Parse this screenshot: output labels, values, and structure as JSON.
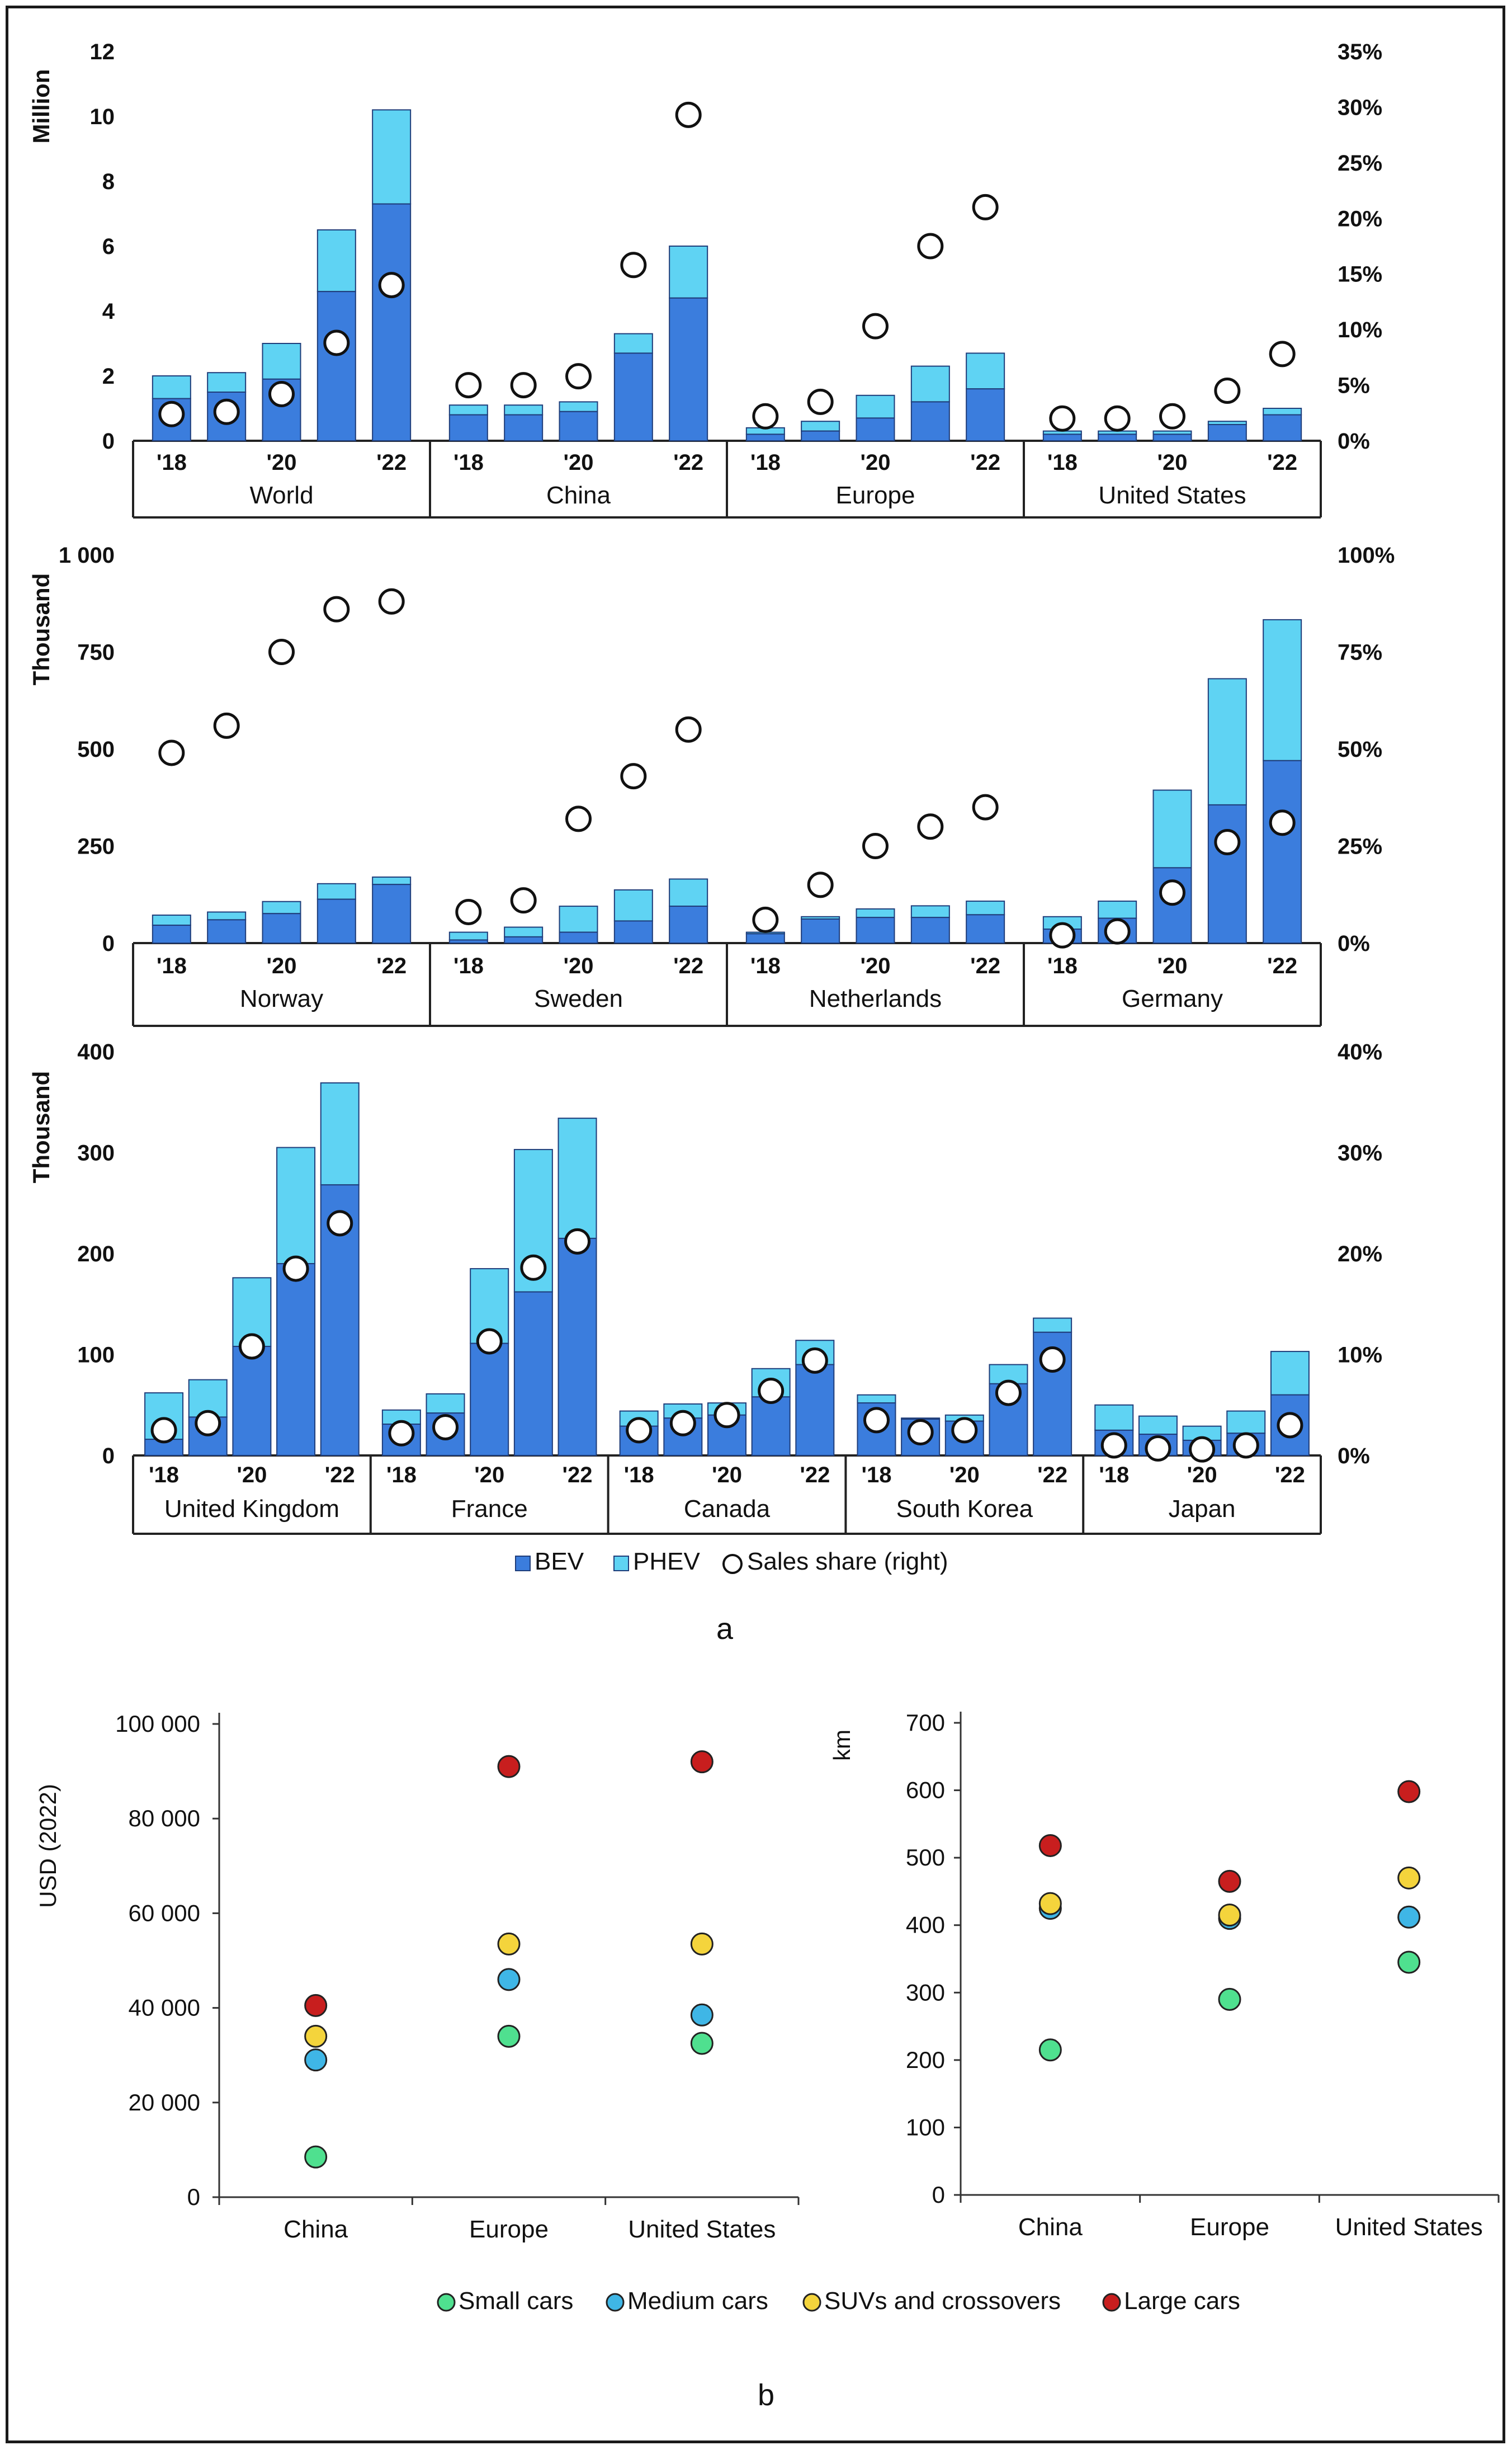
{
  "colors": {
    "bev": "#3b7ddd",
    "phev": "#5fd3f3",
    "small": "#4fe08f",
    "medium": "#3fb6e6",
    "suv": "#f4d43c",
    "large": "#c81e1e",
    "axis": "#222222",
    "marker_fill": "#ffffff"
  },
  "panel_a": {
    "caption": "a",
    "legend": {
      "bev": "BEV",
      "phev": "PHEV",
      "share": "Sales share (right)"
    },
    "year_ticks": [
      "'18",
      "'20",
      "'22"
    ],
    "charts": [
      {
        "id": "row1",
        "y_unit_label": "Million",
        "ylim": [
          0,
          12
        ],
        "y_ticks": [
          "0",
          "2",
          "4",
          "6",
          "8",
          "10",
          "12"
        ],
        "y_tick_values": [
          0,
          2,
          4,
          6,
          8,
          10,
          12
        ],
        "share_max": 35,
        "share_ticks": [
          "0%",
          "5%",
          "10%",
          "15%",
          "20%",
          "25%",
          "30%",
          "35%"
        ],
        "share_tick_values": [
          0,
          5,
          10,
          15,
          20,
          25,
          30,
          35
        ],
        "groups": [
          {
            "name": "World",
            "bev": [
              1.3,
              1.5,
              1.9,
              4.6,
              7.3
            ],
            "total": [
              2.0,
              2.1,
              3.0,
              6.5,
              10.2
            ],
            "share": [
              2.4,
              2.6,
              4.2,
              8.8,
              14.0
            ]
          },
          {
            "name": "China",
            "bev": [
              0.8,
              0.8,
              0.9,
              2.7,
              4.4
            ],
            "total": [
              1.1,
              1.1,
              1.2,
              3.3,
              6.0
            ],
            "share": [
              5.0,
              5.0,
              5.8,
              15.8,
              29.3
            ]
          },
          {
            "name": "Europe",
            "bev": [
              0.2,
              0.3,
              0.7,
              1.2,
              1.6
            ],
            "total": [
              0.4,
              0.6,
              1.4,
              2.3,
              2.7
            ],
            "share": [
              2.2,
              3.5,
              10.3,
              17.5,
              21.0
            ]
          },
          {
            "name": "United States",
            "bev": [
              0.2,
              0.2,
              0.2,
              0.5,
              0.8
            ],
            "total": [
              0.3,
              0.3,
              0.3,
              0.6,
              1.0
            ],
            "share": [
              2.0,
              2.0,
              2.2,
              4.5,
              7.8
            ]
          }
        ]
      },
      {
        "id": "row2",
        "y_unit_label": "Thousand",
        "ylim": [
          0,
          1000
        ],
        "y_ticks": [
          "0",
          "250",
          "500",
          "750",
          "1 000"
        ],
        "y_tick_values": [
          0,
          250,
          500,
          750,
          1000
        ],
        "share_max": 100,
        "share_ticks": [
          "0%",
          "25%",
          "50%",
          "75%",
          "100%"
        ],
        "share_tick_values": [
          0,
          25,
          50,
          75,
          100
        ],
        "groups": [
          {
            "name": "Norway",
            "bev": [
              46,
              60,
              76,
              113,
              151
            ],
            "total": [
              72,
              80,
              107,
              153,
              170
            ],
            "share": [
              49,
              56,
              75,
              86,
              88
            ]
          },
          {
            "name": "Sweden",
            "bev": [
              8,
              16,
              28,
              57,
              95
            ],
            "total": [
              28,
              41,
              95,
              137,
              165
            ],
            "share": [
              8,
              11,
              32,
              43,
              55
            ]
          },
          {
            "name": "Netherlands",
            "bev": [
              24,
              62,
              66,
              66,
              73
            ],
            "total": [
              28,
              68,
              88,
              96,
              108
            ],
            "share": [
              6,
              15,
              25,
              30,
              35
            ]
          },
          {
            "name": "Germany",
            "bev": [
              36,
              64,
              194,
              356,
              470
            ],
            "total": [
              68,
              108,
              394,
              681,
              833
            ],
            "share": [
              2,
              3,
              13,
              26,
              31
            ]
          }
        ]
      },
      {
        "id": "row3",
        "y_unit_label": "Thousand",
        "ylim": [
          0,
          400
        ],
        "y_ticks": [
          "0",
          "100",
          "200",
          "300",
          "400"
        ],
        "y_tick_values": [
          0,
          100,
          200,
          300,
          400
        ],
        "share_max": 40,
        "share_ticks": [
          "0%",
          "10%",
          "20%",
          "30%",
          "40%"
        ],
        "share_tick_values": [
          0,
          10,
          20,
          30,
          40
        ],
        "groups": [
          {
            "name": "United Kingdom",
            "bev": [
              16,
              38,
              108,
              190,
              268
            ],
            "total": [
              62,
              75,
              176,
              305,
              369
            ],
            "share": [
              2.5,
              3.2,
              10.8,
              18.5,
              23.0
            ]
          },
          {
            "name": "France",
            "bev": [
              31,
              42,
              111,
              162,
              215
            ],
            "total": [
              45,
              61,
              185,
              303,
              334
            ],
            "share": [
              2.2,
              2.8,
              11.3,
              18.6,
              21.2
            ]
          },
          {
            "name": "Canada",
            "bev": [
              29,
              37,
              40,
              58,
              90
            ],
            "total": [
              44,
              51,
              52,
              86,
              114
            ],
            "share": [
              2.5,
              3.2,
              4.0,
              6.4,
              9.4
            ]
          },
          {
            "name": "South Korea",
            "bev": [
              52,
              36,
              34,
              71,
              122
            ],
            "total": [
              60,
              37,
              40,
              90,
              136
            ],
            "share": [
              3.5,
              2.3,
              2.5,
              6.2,
              9.5
            ]
          },
          {
            "name": "Japan",
            "bev": [
              25,
              21,
              15,
              22,
              60
            ],
            "total": [
              50,
              39,
              29,
              44,
              103
            ],
            "share": [
              1.0,
              0.7,
              0.6,
              1.0,
              3.0
            ]
          }
        ]
      }
    ]
  },
  "panel_b": {
    "caption": "b",
    "categories": [
      "China",
      "Europe",
      "United States"
    ],
    "legend": [
      "Small cars",
      "Medium cars",
      "SUVs and crossovers",
      "Large cars"
    ],
    "price_chart": {
      "ylabel": "USD (2022)",
      "ylim": [
        0,
        100000
      ],
      "y_ticks": [
        "0",
        "20 000",
        "40 000",
        "60 000",
        "80 000",
        "100 000"
      ],
      "y_tick_values": [
        0,
        20000,
        40000,
        60000,
        80000,
        100000
      ],
      "series": [
        {
          "name": "Small cars",
          "values": [
            8500,
            34000,
            32500
          ]
        },
        {
          "name": "Medium cars",
          "values": [
            29000,
            46000,
            38500
          ]
        },
        {
          "name": "SUVs and crossovers",
          "values": [
            34000,
            53500,
            53500
          ]
        },
        {
          "name": "Large cars",
          "values": [
            40500,
            91000,
            92000
          ]
        }
      ]
    },
    "range_chart": {
      "ylabel": "km",
      "ylim": [
        0,
        700
      ],
      "y_ticks": [
        "0",
        "100",
        "200",
        "300",
        "400",
        "500",
        "600",
        "700"
      ],
      "y_tick_values": [
        0,
        100,
        200,
        300,
        400,
        500,
        600,
        700
      ],
      "series": [
        {
          "name": "Small cars",
          "values": [
            215,
            290,
            345
          ]
        },
        {
          "name": "Medium cars",
          "values": [
            425,
            410,
            412
          ]
        },
        {
          "name": "SUVs and crossovers",
          "values": [
            432,
            415,
            470
          ]
        },
        {
          "name": "Large cars",
          "values": [
            518,
            465,
            598
          ]
        }
      ]
    }
  },
  "chart_data": [
    {
      "type": "bar",
      "title": "",
      "ylabel": "Million",
      "y2label": "Sales share (right)",
      "ylim": [
        0,
        12
      ],
      "y2lim": [
        0,
        35
      ],
      "categories": [
        "World '18",
        "World '19",
        "World '20",
        "World '21",
        "World '22",
        "China '18",
        "China '19",
        "China '20",
        "China '21",
        "China '22",
        "Europe '18",
        "Europe '19",
        "Europe '20",
        "Europe '21",
        "Europe '22",
        "United States '18",
        "United States '19",
        "United States '20",
        "United States '21",
        "United States '22"
      ],
      "series": [
        {
          "name": "BEV",
          "values": [
            1.3,
            1.5,
            1.9,
            4.6,
            7.3,
            0.8,
            0.8,
            0.9,
            2.7,
            4.4,
            0.2,
            0.3,
            0.7,
            1.2,
            1.6,
            0.2,
            0.2,
            0.2,
            0.5,
            0.8
          ]
        },
        {
          "name": "PHEV",
          "values": [
            0.7,
            0.6,
            1.1,
            1.9,
            2.9,
            0.3,
            0.3,
            0.3,
            0.6,
            1.6,
            0.2,
            0.3,
            0.7,
            1.1,
            1.1,
            0.1,
            0.1,
            0.1,
            0.1,
            0.2
          ]
        },
        {
          "name": "Sales share (right)",
          "values": [
            2.4,
            2.6,
            4.2,
            8.8,
            14.0,
            5.0,
            5.0,
            5.8,
            15.8,
            29.3,
            2.2,
            3.5,
            10.3,
            17.5,
            21.0,
            2.0,
            2.0,
            2.2,
            4.5,
            7.8
          ]
        }
      ]
    },
    {
      "type": "bar",
      "title": "",
      "ylabel": "Thousand",
      "y2label": "Sales share (right)",
      "ylim": [
        0,
        1000
      ],
      "y2lim": [
        0,
        100
      ],
      "categories": [
        "Norway '18",
        "Norway '19",
        "Norway '20",
        "Norway '21",
        "Norway '22",
        "Sweden '18",
        "Sweden '19",
        "Sweden '20",
        "Sweden '21",
        "Sweden '22",
        "Netherlands '18",
        "Netherlands '19",
        "Netherlands '20",
        "Netherlands '21",
        "Netherlands '22",
        "Germany '18",
        "Germany '19",
        "Germany '20",
        "Germany '21",
        "Germany '22"
      ],
      "series": [
        {
          "name": "BEV",
          "values": [
            46,
            60,
            76,
            113,
            151,
            8,
            16,
            28,
            57,
            95,
            24,
            62,
            66,
            66,
            73,
            36,
            64,
            194,
            356,
            470
          ]
        },
        {
          "name": "PHEV",
          "values": [
            26,
            20,
            31,
            40,
            19,
            20,
            25,
            67,
            80,
            70,
            4,
            6,
            22,
            30,
            35,
            32,
            44,
            200,
            325,
            363
          ]
        },
        {
          "name": "Sales share (right)",
          "values": [
            49,
            56,
            75,
            86,
            88,
            8,
            11,
            32,
            43,
            55,
            6,
            15,
            25,
            30,
            35,
            2,
            3,
            13,
            26,
            31
          ]
        }
      ]
    },
    {
      "type": "bar",
      "title": "",
      "ylabel": "Thousand",
      "y2label": "Sales share (right)",
      "ylim": [
        0,
        400
      ],
      "y2lim": [
        0,
        40
      ],
      "categories": [
        "United Kingdom '18",
        "United Kingdom '19",
        "United Kingdom '20",
        "United Kingdom '21",
        "United Kingdom '22",
        "France '18",
        "France '19",
        "France '20",
        "France '21",
        "France '22",
        "Canada '18",
        "Canada '19",
        "Canada '20",
        "Canada '21",
        "Canada '22",
        "South Korea '18",
        "South Korea '19",
        "South Korea '20",
        "South Korea '21",
        "South Korea '22",
        "Japan '18",
        "Japan '19",
        "Japan '20",
        "Japan '21",
        "Japan '22"
      ],
      "series": [
        {
          "name": "BEV",
          "values": [
            16,
            38,
            108,
            190,
            268,
            31,
            42,
            111,
            162,
            215,
            29,
            37,
            40,
            58,
            90,
            52,
            36,
            34,
            71,
            122,
            25,
            21,
            15,
            22,
            60
          ]
        },
        {
          "name": "PHEV",
          "values": [
            46,
            37,
            68,
            115,
            101,
            14,
            19,
            74,
            141,
            119,
            15,
            14,
            12,
            28,
            24,
            8,
            1,
            6,
            19,
            14,
            25,
            18,
            14,
            22,
            43
          ]
        },
        {
          "name": "Sales share (right)",
          "values": [
            2.5,
            3.2,
            10.8,
            18.5,
            23.0,
            2.2,
            2.8,
            11.3,
            18.6,
            21.2,
            2.5,
            3.2,
            4.0,
            6.4,
            9.4,
            3.5,
            2.3,
            2.5,
            6.2,
            9.5,
            1.0,
            0.7,
            0.6,
            1.0,
            3.0
          ]
        }
      ]
    },
    {
      "type": "scatter",
      "title": "",
      "xlabel": "",
      "ylabel": "USD (2022)",
      "ylim": [
        0,
        100000
      ],
      "categories": [
        "China",
        "Europe",
        "United States"
      ],
      "series": [
        {
          "name": "Small cars",
          "values": [
            8500,
            34000,
            32500
          ]
        },
        {
          "name": "Medium cars",
          "values": [
            29000,
            46000,
            38500
          ]
        },
        {
          "name": "SUVs and crossovers",
          "values": [
            34000,
            53500,
            53500
          ]
        },
        {
          "name": "Large cars",
          "values": [
            40500,
            91000,
            92000
          ]
        }
      ]
    },
    {
      "type": "scatter",
      "title": "",
      "xlabel": "",
      "ylabel": "km",
      "ylim": [
        0,
        700
      ],
      "categories": [
        "China",
        "Europe",
        "United States"
      ],
      "series": [
        {
          "name": "Small cars",
          "values": [
            215,
            290,
            345
          ]
        },
        {
          "name": "Medium cars",
          "values": [
            425,
            410,
            412
          ]
        },
        {
          "name": "SUVs and crossovers",
          "values": [
            432,
            415,
            470
          ]
        },
        {
          "name": "Large cars",
          "values": [
            518,
            465,
            598
          ]
        }
      ]
    }
  ]
}
